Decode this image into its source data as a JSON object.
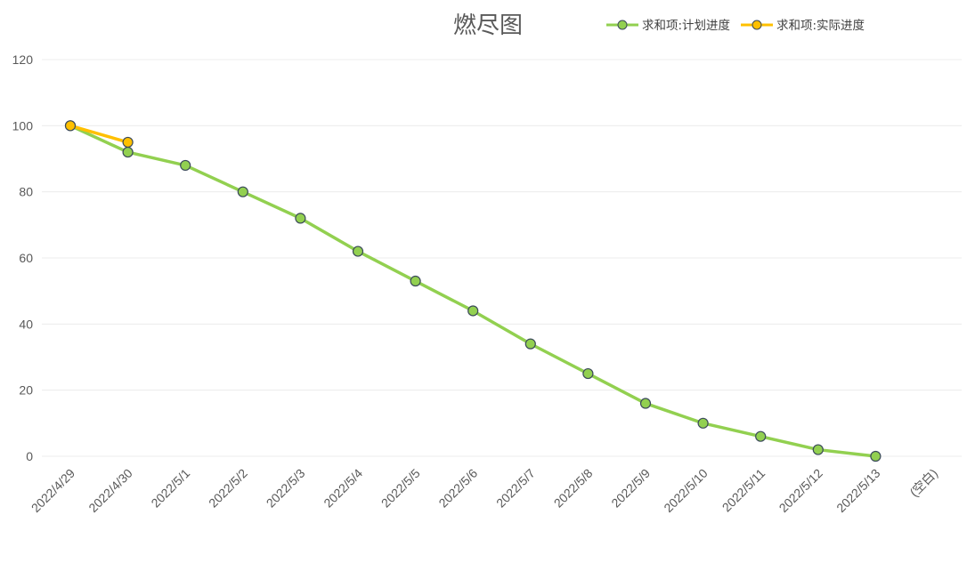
{
  "chart_data": {
    "type": "line",
    "title": "燃尽图",
    "categories": [
      "2022/4/29",
      "2022/4/30",
      "2022/5/1",
      "2022/5/2",
      "2022/5/3",
      "2022/5/4",
      "2022/5/5",
      "2022/5/6",
      "2022/5/7",
      "2022/5/8",
      "2022/5/9",
      "2022/5/10",
      "2022/5/11",
      "2022/5/12",
      "2022/5/13",
      "(空白)"
    ],
    "series": [
      {
        "name": "求和项:计划进度",
        "color": "#92d050",
        "marker_fill": "#92d050",
        "values": [
          100,
          92,
          88,
          80,
          72,
          62,
          53,
          44,
          34,
          25,
          16,
          10,
          6,
          2,
          0,
          null
        ]
      },
      {
        "name": "求和项:实际进度",
        "color": "#ffc000",
        "marker_fill": "#ffc000",
        "values": [
          100,
          95,
          null,
          null,
          null,
          null,
          null,
          null,
          null,
          null,
          null,
          null,
          null,
          null,
          null,
          null
        ]
      }
    ],
    "y_ticks": [
      "0",
      "20",
      "40",
      "60",
      "80",
      "100",
      "120"
    ],
    "ylim": [
      0,
      120
    ],
    "grid": true,
    "legend_position": "top-right",
    "marker_stroke": "#3b4a5a"
  }
}
